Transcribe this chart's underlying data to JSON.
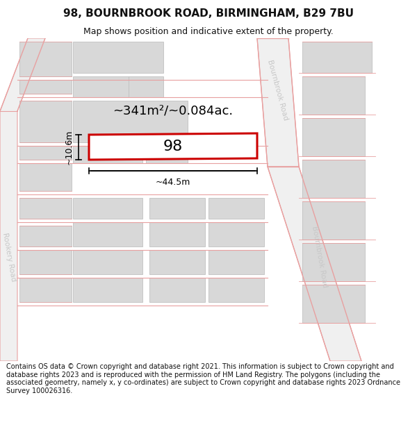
{
  "title": "98, BOURNBROOK ROAD, BIRMINGHAM, B29 7BU",
  "subtitle": "Map shows position and indicative extent of the property.",
  "footer": "Contains OS data © Crown copyright and database right 2021. This information is subject to Crown copyright and database rights 2023 and is reproduced with the permission of HM Land Registry. The polygons (including the associated geometry, namely x, y co-ordinates) are subject to Crown copyright and database rights 2023 Ordnance Survey 100026316.",
  "area_label": "~341m²/~0.084ac.",
  "width_label": "~44.5m",
  "height_label": "~10.6m",
  "property_number": "98",
  "bg_color": "#ffffff",
  "road_line_color": "#e8a0a0",
  "building_fill": "#d8d8d8",
  "building_edge": "#c0c0c0",
  "property_outline": "#cc0000",
  "road_text_color": "#c8c8c8",
  "dim_color": "#000000",
  "map_bg": "#ffffff",
  "title_fontsize": 11,
  "subtitle_fontsize": 9,
  "footer_fontsize": 7
}
